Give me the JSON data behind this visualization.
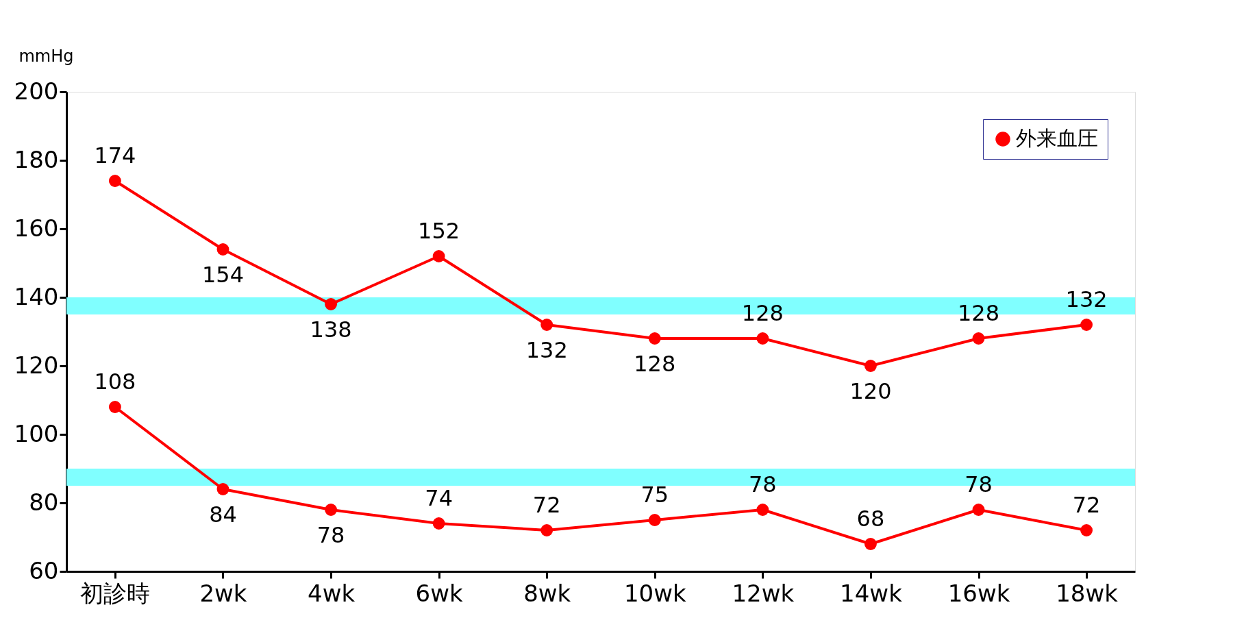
{
  "chart_data": {
    "type": "line",
    "ylabel": "mmHg",
    "categories": [
      "初診時",
      "2wk",
      "4wk",
      "6wk",
      "8wk",
      "10wk",
      "12wk",
      "14wk",
      "16wk",
      "18wk"
    ],
    "series": [
      {
        "name": "外来血圧",
        "color": "#ff0000",
        "values": [
          174,
          154,
          138,
          152,
          132,
          128,
          128,
          120,
          128,
          132
        ]
      },
      {
        "color": "#ff0000",
        "values": [
          108,
          84,
          78,
          74,
          72,
          75,
          78,
          68,
          78,
          72
        ]
      }
    ],
    "ylim": [
      60,
      200
    ],
    "yticks": [
      60,
      80,
      100,
      120,
      140,
      160,
      180,
      200
    ],
    "bands": [
      {
        "axis": "y",
        "from": 135,
        "to": 140,
        "color": "#80ffff"
      },
      {
        "axis": "y",
        "from": 85,
        "to": 90,
        "color": "#80ffff"
      }
    ],
    "data_labels": true,
    "marker": "circle",
    "line_style": "solid",
    "legend": "top right",
    "grid": false
  }
}
